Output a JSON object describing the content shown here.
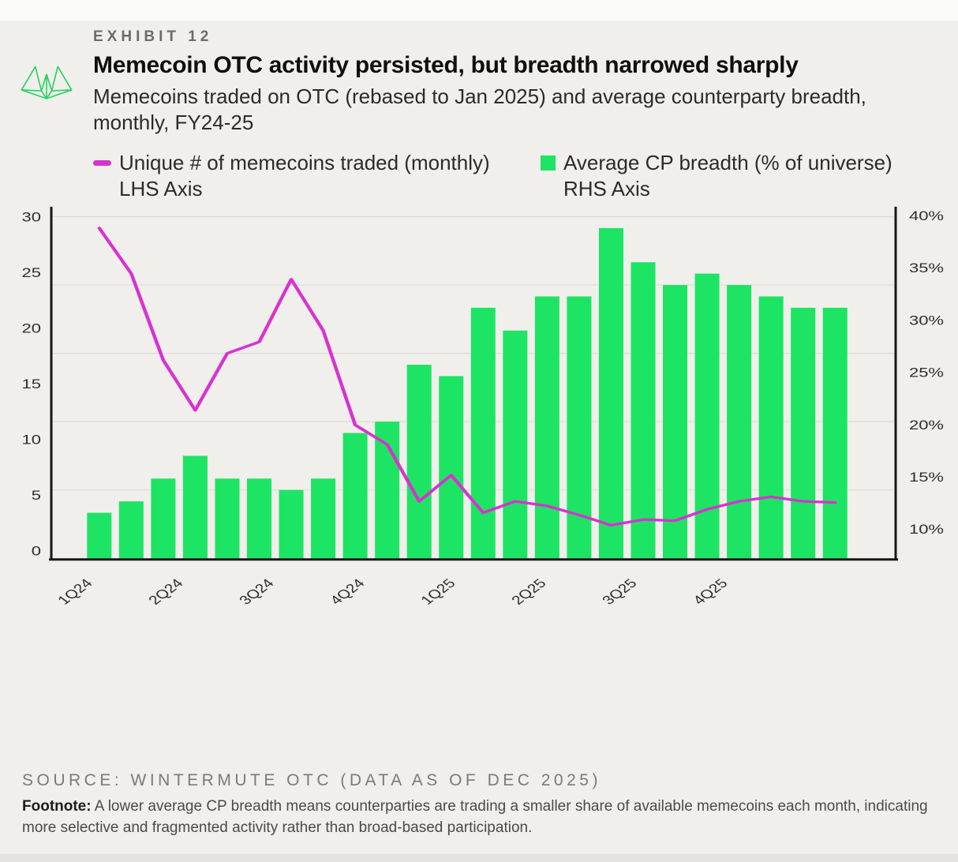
{
  "header": {
    "exhibit": "EXHIBIT 12",
    "title": "Memecoin OTC activity persisted, but breadth narrowed sharply",
    "subtitle": "Memecoins traded on OTC (rebased to Jan 2025) and average counterparty breadth, monthly,  FY24-25"
  },
  "legend": {
    "items": [
      {
        "label": "Unique # of memecoins traded (monthly)",
        "axis_label": "LHS Axis",
        "color": "#d832cf",
        "shape": "dash"
      },
      {
        "label": "Average CP breadth (% of universe)",
        "axis_label": "RHS Axis",
        "color": "#1ee464",
        "shape": "square"
      }
    ]
  },
  "chart_data": {
    "type": "combo-bar-line",
    "title": "Memecoin OTC activity persisted, but breadth narrowed sharply",
    "x": {
      "quarter_labels": [
        "1Q24",
        "2Q24",
        "3Q24",
        "4Q24",
        "1Q25",
        "2Q25",
        "3Q25",
        "4Q25"
      ],
      "bars_per_quarter": 3,
      "n_points": 24
    },
    "left_axis": {
      "label": "Unique # of memecoins traded (monthly)",
      "min": 0,
      "max": 30,
      "ticks": [
        "30",
        "25",
        "20",
        "15",
        "10",
        "5",
        "0"
      ]
    },
    "right_axis": {
      "label": "Average CP breadth (% of universe)",
      "min": 10,
      "max": 40,
      "ticks": [
        "40%",
        "35%",
        "30%",
        "25%",
        "20%",
        "15%",
        "10%"
      ]
    },
    "grid": "horizontal-only",
    "legend_position": "top-left",
    "series": [
      {
        "name": "Unique # of memecoins traded (monthly)",
        "type": "line",
        "axis": "left",
        "color": "#d832cf",
        "values": [
          29,
          25,
          17.4,
          13,
          18,
          19,
          24.5,
          20,
          11.7,
          10,
          5,
          7.3,
          4,
          5,
          4.6,
          3.8,
          2.9,
          3.4,
          3.3,
          4.3,
          5,
          5.4,
          5,
          4.9
        ]
      },
      {
        "name": "Average CP breadth (% of universe)",
        "type": "bar",
        "axis": "right",
        "color": "#1ee464",
        "values": [
          14,
          15,
          17,
          19,
          17,
          17,
          16,
          17,
          21,
          22,
          27,
          26,
          32,
          30,
          33,
          33,
          39,
          36,
          34,
          35,
          34,
          33,
          32,
          32
        ]
      }
    ]
  },
  "footer": {
    "source": "SOURCE: WINTERMUTE OTC (DATA AS OF DEC 2025)",
    "footnote_label": "Footnote:",
    "footnote_text": " A lower average CP breadth means counterparties are trading a smaller share of available memecoins each month, indicating more selective and fragmented activity rather than broad-based participation."
  },
  "colors": {
    "bar_green": "#1ee464",
    "line_magenta": "#d832cf",
    "logo_green": "#2bd15f",
    "background": "#f0efec",
    "axis_dark": "#161616",
    "gridline": "#dcdbd7"
  }
}
